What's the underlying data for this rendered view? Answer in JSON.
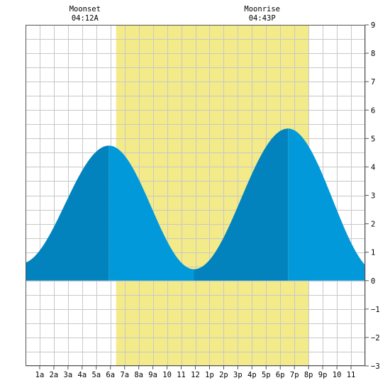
{
  "chart_data": {
    "type": "area",
    "title": "",
    "xlabel": "",
    "ylabel": "",
    "x_range_hours": [
      0,
      24
    ],
    "ylim": [
      -3,
      9
    ],
    "y_ticks": [
      -3,
      -2,
      -1,
      0,
      1,
      2,
      3,
      4,
      5,
      6,
      7,
      8,
      9
    ],
    "y_tick_labels": [
      "−3",
      "−2",
      "−1",
      "0",
      "1",
      "2",
      "3",
      "4",
      "5",
      "6",
      "7",
      "8",
      "9"
    ],
    "x_ticks": [
      1,
      2,
      3,
      4,
      5,
      6,
      7,
      8,
      9,
      10,
      11,
      12,
      13,
      14,
      15,
      16,
      17,
      18,
      19,
      20,
      21,
      22,
      23
    ],
    "x_tick_labels": [
      "1a",
      "2a",
      "3a",
      "4a",
      "5a",
      "6a",
      "7a",
      "8a",
      "9a",
      "10",
      "11",
      "12",
      "1p",
      "2p",
      "3p",
      "4p",
      "5p",
      "6p",
      "7p",
      "8p",
      "9p",
      "10",
      "11"
    ],
    "grid": true,
    "daylight": {
      "start_hour": 6.4,
      "end_hour": 20.0
    },
    "moon_events": [
      {
        "label": "Moonset",
        "time": "04:12A",
        "hour": 4.2
      },
      {
        "label": "Moonrise",
        "time": "04:43P",
        "hour": 16.72
      }
    ],
    "tide_extremes": [
      {
        "type": "low",
        "hour": -0.35,
        "height": 0.6
      },
      {
        "type": "high",
        "hour": 5.9,
        "height": 4.75
      },
      {
        "type": "low",
        "hour": 11.9,
        "height": 0.4
      },
      {
        "type": "high",
        "hour": 18.55,
        "height": 5.35
      },
      {
        "type": "low",
        "hour": 24.9,
        "height": 0.3
      }
    ],
    "colors": {
      "daylight": "#f3ea8a",
      "rising_tide": "#0283bd",
      "falling_tide": "#0299db",
      "grid": "#c8c8c8",
      "frame": "#555555"
    }
  }
}
